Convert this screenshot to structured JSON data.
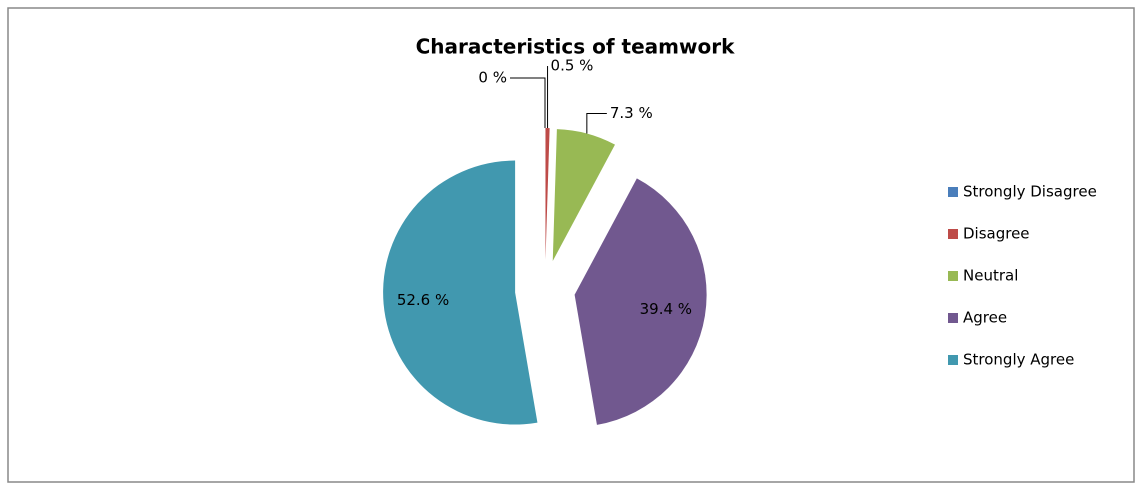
{
  "chart_data": {
    "type": "pie",
    "title": "Characteristics of teamwork",
    "categories": [
      "Strongly Disagree",
      "Disagree",
      "Neutral",
      "Agree",
      "Strongly Agree"
    ],
    "values": [
      0,
      0.5,
      7.3,
      39.4,
      52.6
    ],
    "value_labels": [
      "0 %",
      "0.5 %",
      "7.3 %",
      "39.4 %",
      "52.6 %"
    ],
    "colors": [
      "#4a7ebb",
      "#be4b48",
      "#98b954",
      "#71588f",
      "#4198af"
    ],
    "legend": "right"
  }
}
